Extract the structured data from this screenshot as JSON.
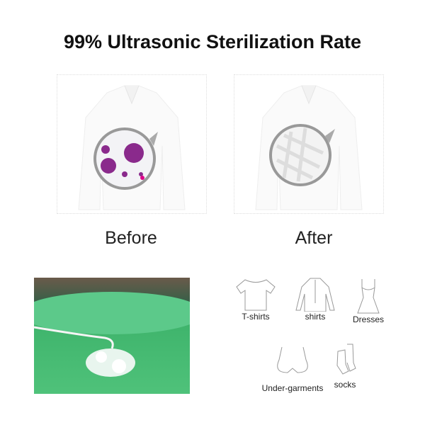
{
  "title": "99% Ultrasonic Sterilization Rate",
  "comparison": {
    "before_label": "Before",
    "after_label": "After"
  },
  "garments": [
    {
      "label": "T-shirts",
      "icon": "t-shirt-icon"
    },
    {
      "label": "shirts",
      "icon": "shirt-icon"
    },
    {
      "label": "Dresses",
      "icon": "dress-icon"
    },
    {
      "label": "Under-garments",
      "icon": "bra-icon"
    },
    {
      "label": "socks",
      "icon": "socks-icon"
    }
  ],
  "colors": {
    "virus": "#8a2a8c",
    "water": "#4fc27a"
  }
}
